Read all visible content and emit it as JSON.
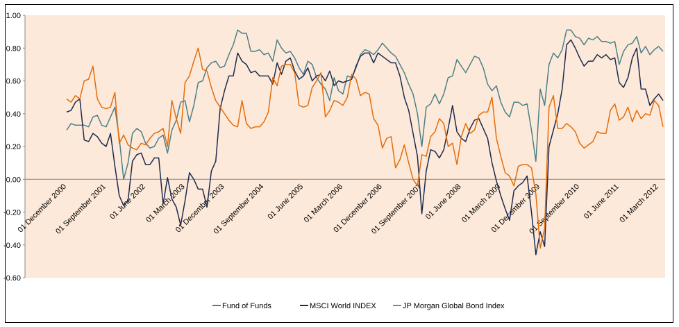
{
  "chart_data": {
    "type": "line",
    "categories": [
      "01 December 2000",
      null,
      null,
      null,
      null,
      null,
      null,
      null,
      null,
      "01 September 2001",
      null,
      null,
      null,
      null,
      null,
      null,
      null,
      null,
      "01 June 2002",
      null,
      null,
      null,
      null,
      null,
      null,
      null,
      null,
      "01 March 2003",
      null,
      null,
      null,
      null,
      null,
      null,
      null,
      null,
      "01 December 2003",
      null,
      null,
      null,
      null,
      null,
      null,
      null,
      null,
      "01 September 2004",
      null,
      null,
      null,
      null,
      null,
      null,
      null,
      null,
      "01 June 2005",
      null,
      null,
      null,
      null,
      null,
      null,
      null,
      null,
      "01 March 2006",
      null,
      null,
      null,
      null,
      null,
      null,
      null,
      null,
      "01 December 2006",
      null,
      null,
      null,
      null,
      null,
      null,
      null,
      null,
      "01 September 2007",
      null,
      null,
      null,
      null,
      null,
      null,
      null,
      null,
      "01 June 2008",
      null,
      null,
      null,
      null,
      null,
      null,
      null,
      null,
      "01 March 2009",
      null,
      null,
      null,
      null,
      null,
      null,
      null,
      null,
      "01 December 2009",
      null,
      null,
      null,
      null,
      null,
      null,
      null,
      null,
      "01 September 2010",
      null,
      null,
      null,
      null,
      null,
      null,
      null,
      null,
      "01 June 2011",
      null,
      null,
      null,
      null,
      null,
      null,
      null,
      null,
      "01 March 2012",
      null
    ],
    "series": [
      {
        "name": "Fund of Funds",
        "color": "#4a8087",
        "values": [
          0.3,
          0.34,
          0.33,
          0.33,
          0.33,
          0.32,
          0.38,
          0.39,
          0.33,
          0.32,
          0.38,
          0.44,
          0.25,
          0.0,
          0.1,
          0.28,
          0.31,
          0.29,
          0.22,
          0.19,
          0.2,
          0.25,
          0.27,
          0.16,
          0.3,
          0.36,
          0.47,
          0.48,
          0.35,
          0.45,
          0.59,
          0.6,
          0.68,
          0.71,
          0.72,
          0.68,
          0.69,
          0.76,
          0.82,
          0.91,
          0.89,
          0.89,
          0.78,
          0.78,
          0.79,
          0.76,
          0.77,
          0.72,
          0.85,
          0.8,
          0.77,
          0.78,
          0.74,
          0.68,
          0.64,
          0.72,
          0.7,
          0.62,
          0.58,
          0.55,
          0.48,
          0.62,
          0.54,
          0.52,
          0.63,
          0.62,
          0.68,
          0.76,
          0.79,
          0.78,
          0.76,
          0.79,
          0.83,
          0.8,
          0.77,
          0.75,
          0.7,
          0.65,
          0.58,
          0.52,
          0.4,
          0.2,
          0.44,
          0.46,
          0.52,
          0.46,
          0.52,
          0.62,
          0.63,
          0.73,
          0.69,
          0.65,
          0.7,
          0.75,
          0.74,
          0.68,
          0.58,
          0.54,
          0.57,
          0.47,
          0.41,
          0.38,
          0.47,
          0.47,
          0.45,
          0.46,
          0.3,
          0.11,
          0.55,
          0.45,
          0.7,
          0.77,
          0.74,
          0.79,
          0.91,
          0.91,
          0.87,
          0.86,
          0.82,
          0.86,
          0.85,
          0.87,
          0.84,
          0.84,
          0.83,
          0.84,
          0.7,
          0.78,
          0.82,
          0.83,
          0.87,
          0.77,
          0.81,
          0.76,
          0.79,
          0.81,
          0.78
        ]
      },
      {
        "name": "MSCI World INDEX",
        "color": "#1b2a4e",
        "values": [
          0.41,
          0.42,
          0.47,
          0.49,
          0.24,
          0.23,
          0.28,
          0.26,
          0.22,
          0.2,
          0.28,
          0.08,
          -0.1,
          -0.16,
          -0.13,
          0.11,
          0.15,
          0.16,
          0.09,
          0.09,
          0.13,
          0.13,
          -0.15,
          0.01,
          -0.12,
          -0.17,
          -0.28,
          -0.13,
          0.04,
          0.0,
          -0.06,
          -0.06,
          -0.17,
          0.05,
          0.11,
          0.43,
          0.54,
          0.63,
          0.63,
          0.77,
          0.72,
          0.7,
          0.65,
          0.66,
          0.63,
          0.63,
          0.63,
          0.58,
          0.71,
          0.64,
          0.72,
          0.74,
          0.66,
          0.61,
          0.63,
          0.68,
          0.6,
          0.63,
          0.64,
          0.6,
          0.66,
          0.57,
          0.6,
          0.59,
          0.6,
          0.61,
          0.69,
          0.75,
          0.77,
          0.77,
          0.71,
          0.77,
          0.75,
          0.73,
          0.71,
          0.71,
          0.63,
          0.5,
          0.42,
          0.28,
          0.14,
          -0.21,
          0.05,
          0.18,
          0.17,
          0.13,
          0.18,
          0.31,
          0.45,
          0.29,
          0.25,
          0.23,
          0.31,
          0.36,
          0.37,
          0.31,
          0.25,
          0.1,
          -0.01,
          -0.1,
          -0.18,
          -0.25,
          -0.07,
          -0.04,
          -0.02,
          0.02,
          -0.2,
          -0.46,
          -0.32,
          -0.41,
          0.2,
          0.3,
          0.4,
          0.55,
          0.82,
          0.85,
          0.8,
          0.74,
          0.69,
          0.72,
          0.72,
          0.76,
          0.74,
          0.76,
          0.73,
          0.74,
          0.59,
          0.56,
          0.62,
          0.74,
          0.8,
          0.55,
          0.55,
          0.45,
          0.49,
          0.52,
          0.48
        ]
      },
      {
        "name": "JP Morgan Global Bond Index",
        "color": "#e46c0a",
        "values": [
          0.49,
          0.47,
          0.51,
          0.49,
          0.6,
          0.61,
          0.69,
          0.49,
          0.44,
          0.43,
          0.44,
          0.53,
          0.22,
          0.27,
          0.21,
          0.19,
          0.18,
          0.22,
          0.21,
          0.25,
          0.28,
          0.29,
          0.31,
          0.2,
          0.48,
          0.37,
          0.28,
          0.59,
          0.63,
          0.72,
          0.8,
          0.67,
          0.66,
          0.56,
          0.48,
          0.44,
          0.4,
          0.36,
          0.33,
          0.32,
          0.48,
          0.34,
          0.31,
          0.32,
          0.32,
          0.35,
          0.41,
          0.62,
          0.57,
          0.69,
          0.7,
          0.7,
          0.65,
          0.45,
          0.44,
          0.45,
          0.56,
          0.6,
          0.65,
          0.38,
          0.42,
          0.48,
          0.47,
          0.45,
          0.5,
          0.64,
          0.61,
          0.51,
          0.53,
          0.52,
          0.37,
          0.33,
          0.19,
          0.25,
          0.26,
          0.07,
          0.12,
          0.21,
          0.1,
          0.0,
          -0.04,
          0.15,
          0.14,
          0.26,
          0.29,
          0.37,
          0.34,
          0.2,
          0.22,
          0.09,
          0.26,
          0.34,
          0.28,
          0.3,
          0.39,
          0.41,
          0.41,
          0.5,
          0.25,
          0.14,
          0.04,
          0.02,
          -0.04,
          0.08,
          0.09,
          0.09,
          0.07,
          -0.09,
          -0.42,
          -0.3,
          0.44,
          0.51,
          0.31,
          0.31,
          0.34,
          0.32,
          0.29,
          0.22,
          0.19,
          0.21,
          0.23,
          0.29,
          0.28,
          0.28,
          0.42,
          0.46,
          0.36,
          0.38,
          0.44,
          0.35,
          0.42,
          0.37,
          0.4,
          0.39,
          0.48,
          0.45,
          0.32
        ]
      }
    ],
    "ylim": [
      -0.6,
      1
    ],
    "yticks": [
      {
        "value": -0.6,
        "label": "-0.60"
      },
      {
        "value": -0.4,
        "label": "-0.40"
      },
      {
        "value": -0.2,
        "label": "-0.20"
      },
      {
        "value": 0,
        "label": "0.00"
      },
      {
        "value": 0.2,
        "label": "0.20"
      },
      {
        "value": 0.4,
        "label": "0.40"
      },
      {
        "value": 0.6,
        "label": "0.60"
      },
      {
        "value": 0.8,
        "label": "0.80"
      },
      {
        "value": 1,
        "label": "1.00"
      }
    ],
    "grid": false,
    "legend": "bottom"
  }
}
